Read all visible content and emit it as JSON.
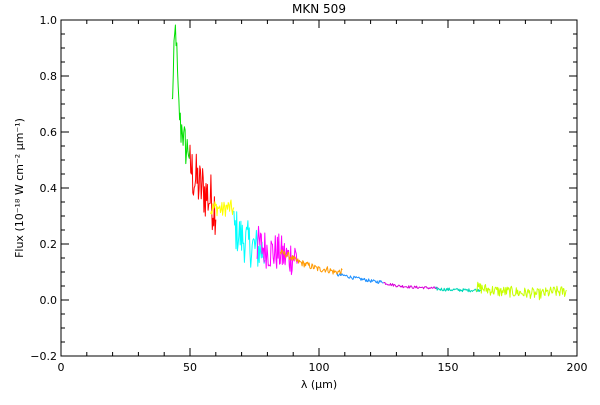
{
  "chart_data": {
    "type": "line",
    "title": "MKN 509",
    "xlabel": "λ (μm)",
    "ylabel": "Flux (10⁻¹⁸ W cm⁻² μm⁻¹)",
    "xlim": [
      0,
      200
    ],
    "ylim": [
      -0.2,
      1.0
    ],
    "x_ticks": [
      0,
      50,
      100,
      150,
      200
    ],
    "x_tick_labels": [
      "0",
      "50",
      "100",
      "150",
      "200"
    ],
    "y_ticks": [
      -0.2,
      0.0,
      0.2,
      0.4,
      0.6,
      0.8,
      1.0
    ],
    "y_tick_labels": [
      "−0.2",
      "0.0",
      "0.2",
      "0.4",
      "0.6",
      "0.8",
      "1.0"
    ],
    "grid": false,
    "legend": "none",
    "series": [
      {
        "color": "#00e000",
        "x": [
          43.0,
          43.5,
          44.0,
          44.5,
          45.0,
          45.5,
          46.0,
          46.5,
          47.0,
          47.5,
          48.0,
          48.5,
          49.0,
          49.5,
          50.0
        ],
        "y": [
          0.7,
          0.78,
          0.92,
          0.98,
          0.84,
          0.7,
          0.66,
          0.6,
          0.63,
          0.56,
          0.58,
          0.52,
          0.55,
          0.54,
          0.5
        ],
        "noise": 0.06
      },
      {
        "color": "#ff0000",
        "x": [
          50.0,
          51.0,
          52.0,
          53.0,
          54.0,
          55.0,
          56.0,
          57.0,
          58.0,
          59.0,
          60.0
        ],
        "y": [
          0.48,
          0.45,
          0.43,
          0.42,
          0.4,
          0.4,
          0.38,
          0.37,
          0.36,
          0.34,
          0.33
        ],
        "noise": 0.1
      },
      {
        "color": "#ffff00",
        "x": [
          58.0,
          59.5,
          61.0,
          62.5,
          64.0,
          65.5,
          67.0
        ],
        "y": [
          0.32,
          0.33,
          0.33,
          0.32,
          0.33,
          0.33,
          0.32
        ],
        "noise": 0.03
      },
      {
        "color": "#00ffff",
        "x": [
          67.0,
          68.5,
          70.0,
          71.5,
          73.0,
          74.5,
          76.0,
          77.5,
          79.0
        ],
        "y": [
          0.26,
          0.24,
          0.22,
          0.21,
          0.2,
          0.19,
          0.18,
          0.18,
          0.17
        ],
        "noise": 0.08
      },
      {
        "color": "#ff00ff",
        "x": [
          76.0,
          78.0,
          80.0,
          82.0,
          84.0,
          86.0,
          88.0,
          90.0,
          92.0
        ],
        "y": [
          0.2,
          0.19,
          0.18,
          0.17,
          0.17,
          0.16,
          0.15,
          0.16,
          0.15
        ],
        "noise": 0.07
      },
      {
        "color": "#ff9900",
        "x": [
          85.0,
          88.0,
          91.0,
          94.0,
          97.0,
          100.0,
          103.0,
          106.0,
          109.0
        ],
        "y": [
          0.17,
          0.16,
          0.14,
          0.13,
          0.12,
          0.11,
          0.11,
          0.1,
          0.1
        ],
        "noise": 0.012
      },
      {
        "color": "#1e90ff",
        "x": [
          107.0,
          110.0,
          113.0,
          116.0,
          119.0,
          122.0,
          125.0
        ],
        "y": [
          0.09,
          0.087,
          0.08,
          0.075,
          0.07,
          0.065,
          0.065
        ],
        "noise": 0.006
      },
      {
        "color": "#d800d8",
        "x": [
          125.0,
          128.0,
          131.0,
          134.0,
          137.0,
          140.0,
          143.0,
          146.0
        ],
        "y": [
          0.062,
          0.055,
          0.05,
          0.048,
          0.045,
          0.045,
          0.043,
          0.042
        ],
        "noise": 0.005
      },
      {
        "color": "#00d8b8",
        "x": [
          145.0,
          148.0,
          151.0,
          154.0,
          157.0,
          160.0,
          163.0
        ],
        "y": [
          0.04,
          0.038,
          0.037,
          0.036,
          0.035,
          0.035,
          0.037
        ],
        "noise": 0.006
      },
      {
        "color": "#c8ff00",
        "x": [
          161.0,
          164.0,
          167.0,
          170.0,
          173.0,
          176.0,
          179.0,
          182.0,
          185.0,
          188.0,
          191.0,
          194.0,
          196.0
        ],
        "y": [
          0.045,
          0.04,
          0.035,
          0.03,
          0.03,
          0.028,
          0.025,
          0.025,
          0.02,
          0.025,
          0.03,
          0.03,
          0.03
        ],
        "noise": 0.02
      }
    ]
  }
}
